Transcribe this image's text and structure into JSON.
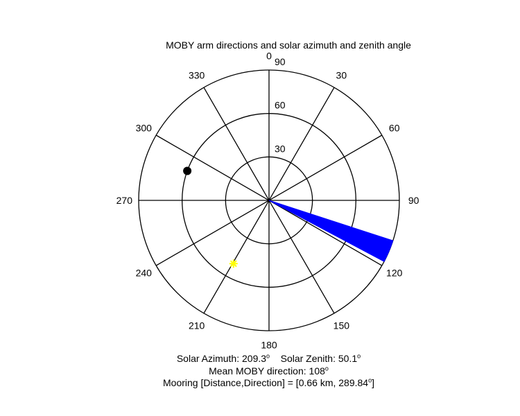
{
  "chart_data": {
    "type": "polar",
    "title": "MOBY arm directions and solar azimuth and zenith angle",
    "angle_ticks": [
      "0",
      "30",
      "60",
      "90",
      "120",
      "150",
      "180",
      "210",
      "240",
      "270",
      "300",
      "330"
    ],
    "radial_ticks": [
      "30",
      "60",
      "90"
    ],
    "rmax": 90,
    "grid": true,
    "moby_arm": {
      "direction_start": 108,
      "direction_end": 118,
      "color": "#0000ff"
    },
    "sun": {
      "azimuth": 209.3,
      "zenith": 50.1,
      "color": "#ffff00",
      "marker": "asterisk"
    },
    "mooring": {
      "direction": 289.84,
      "radius": 60,
      "color": "#000000",
      "marker": "dot"
    }
  },
  "captions": {
    "solar_azimuth_label": "Solar Azimuth: 209.3",
    "solar_zenith_label": "Solar Zenith: 50.1",
    "mean_direction_label": "Mean MOBY direction: 108",
    "mooring_label": "Mooring [Distance,Direction] = [0.66 km, 289.84",
    "mooring_close": "]",
    "degree_symbol": "o"
  }
}
